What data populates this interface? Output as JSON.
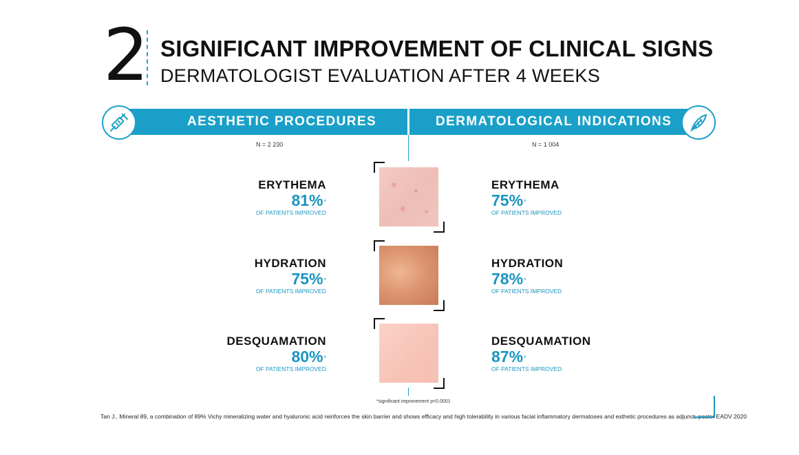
{
  "header": {
    "number": "2",
    "title": "SIGNIFICANT IMPROVEMENT OF CLINICAL SIGNS",
    "subtitle": "DERMATOLOGIST EVALUATION AFTER 4 WEEKS"
  },
  "banner": {
    "left_label": "AESTHETIC PROCEDURES",
    "right_label": "DERMATOLOGICAL INDICATIONS",
    "left_icon": "syringe-icon",
    "right_icon": "feather-icon",
    "color": "#1aa0c8"
  },
  "aesthetic": {
    "n": "N = 2 230",
    "signs": [
      {
        "name": "ERYTHEMA",
        "value": "81%",
        "star": "*",
        "note": "OF PATIENTS IMPROVED"
      },
      {
        "name": "HYDRATION",
        "value": "75%",
        "star": "*",
        "note": "OF PATIENTS IMPROVED"
      },
      {
        "name": "DESQUAMATION",
        "value": "80%",
        "star": "*",
        "note": "OF PATIENTS IMPROVED"
      }
    ]
  },
  "dermatological": {
    "n": "N = 1 004",
    "signs": [
      {
        "name": "ERYTHEMA",
        "value": "75%",
        "star": "*",
        "note": "OF PATIENTS IMPROVED"
      },
      {
        "name": "HYDRATION",
        "value": "78%",
        "star": "*",
        "note": "OF PATIENTS IMPROVED"
      },
      {
        "name": "DESQUAMATION",
        "value": "87%",
        "star": "*",
        "note": "OF PATIENTS IMPROVED"
      }
    ]
  },
  "footnote": "*significant improvement p<0.0001",
  "reference": "Tan J., Mineral 89, a combination of 89% Vichy mineralizing water and hyaluronic acid reinforces the skin barrier and shows efficacy and high tolerability in various facial inflammatory dermatoses and esthetic procedures as adjunct, poster EADV 2020",
  "accent_color": "#1a95c0"
}
